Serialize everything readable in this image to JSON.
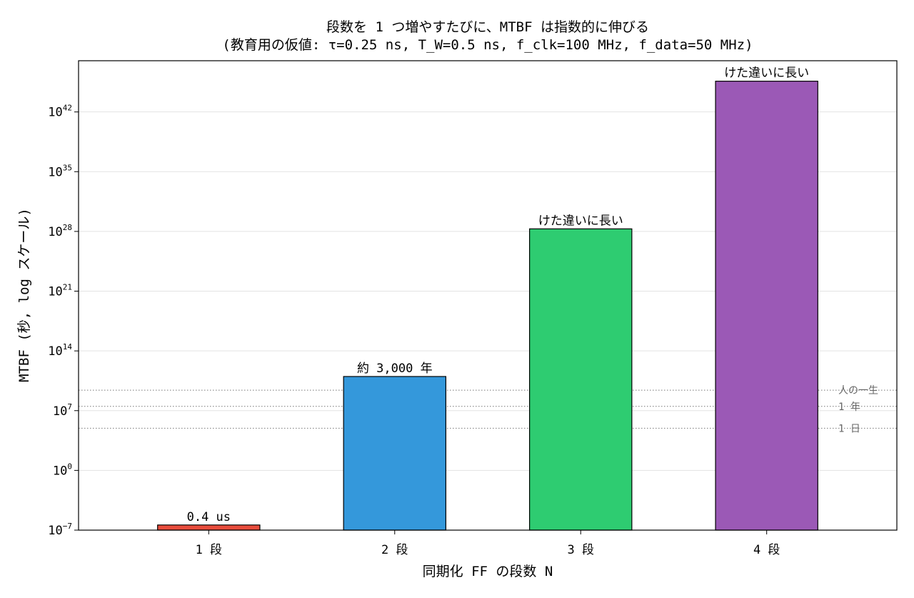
{
  "chart_data": {
    "type": "bar",
    "title": "段数を 1 つ増やすたびに、MTBF は指数的に伸びる",
    "subtitle": "(教育用の仮値: τ=0.25 ns, T_W=0.5 ns, f_clk=100 MHz, f_data=50 MHz)",
    "xlabel": "同期化 FF の段数 N",
    "ylabel": "MTBF (秒, log スケール)",
    "y_scale": "log",
    "ylim": [
      1e-07,
      1e+48
    ],
    "y_ticks": [
      {
        "base": "10",
        "exp": "−7",
        "value": 1e-07
      },
      {
        "base": "10",
        "exp": "0",
        "value": 1
      },
      {
        "base": "10",
        "exp": "7",
        "value": 10000000.0
      },
      {
        "base": "10",
        "exp": "14",
        "value": 100000000000000.0
      },
      {
        "base": "10",
        "exp": "21",
        "value": 1e+21
      },
      {
        "base": "10",
        "exp": "28",
        "value": 1e+28
      },
      {
        "base": "10",
        "exp": "35",
        "value": 1e+35
      },
      {
        "base": "10",
        "exp": "42",
        "value": 1e+42
      }
    ],
    "grid": "horizontal",
    "categories": [
      "1 段",
      "2 段",
      "3 段",
      "4 段"
    ],
    "values": [
      4e-07,
      100000000000.0,
      2e+28,
      4e+45
    ],
    "bar_colors": [
      "#e74c3c",
      "#3498db",
      "#2ecc71",
      "#9b59b6"
    ],
    "bar_labels": [
      "0.4 us",
      "約 3,000 年",
      "けた違いに長い",
      "けた違いに長い"
    ],
    "reference_lines": [
      {
        "label": "人の一生",
        "value": 2500000000.0
      },
      {
        "label": "1 年",
        "value": 31500000.0
      },
      {
        "label": "1 日",
        "value": 86400
      }
    ]
  }
}
